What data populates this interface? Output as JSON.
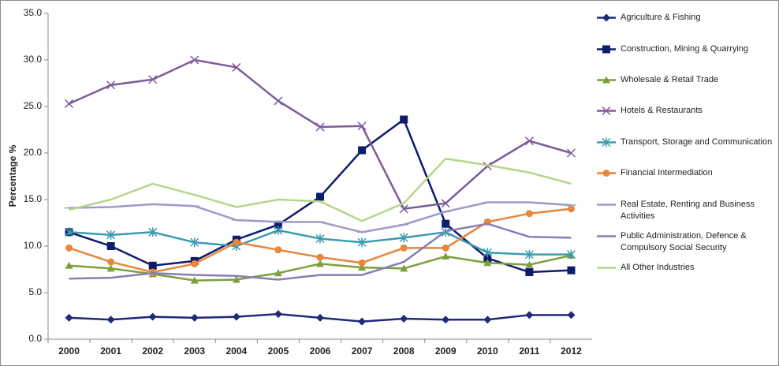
{
  "chart_data": {
    "type": "line",
    "y_label": "Percentage %",
    "categories": [
      "2000",
      "2001",
      "2002",
      "2003",
      "2004",
      "2005",
      "2006",
      "2007",
      "2008",
      "2009",
      "2010",
      "2011",
      "2012"
    ],
    "ylim": [
      0,
      35
    ],
    "yticks": [
      {
        "value": 0,
        "label": "0.0"
      },
      {
        "value": 5,
        "label": "5.0"
      },
      {
        "value": 10,
        "label": "10.0"
      },
      {
        "value": 15,
        "label": "15.0"
      },
      {
        "value": 20,
        "label": "20.0"
      },
      {
        "value": 25,
        "label": "25.0"
      },
      {
        "value": 30,
        "label": "30.0"
      },
      {
        "value": 35,
        "label": "35.0"
      }
    ],
    "legend": "right",
    "series": [
      {
        "name": "Agriculture & Fishing",
        "color": "#1f2a7a",
        "marker": "diamond",
        "values": [
          2.3,
          2.1,
          2.4,
          2.3,
          2.4,
          2.7,
          2.3,
          1.9,
          2.2,
          2.1,
          2.1,
          2.6,
          2.6
        ]
      },
      {
        "name": "Construction, Mining & Quarrying",
        "color": "#0e1c6b",
        "marker": "square",
        "values": [
          11.5,
          10.0,
          7.9,
          8.4,
          10.7,
          12.3,
          15.3,
          20.3,
          23.6,
          12.4,
          8.7,
          7.2,
          7.4
        ]
      },
      {
        "name": "Wholesale & Retail Trade",
        "color": "#7ba03c",
        "marker": "triangle",
        "values": [
          7.9,
          7.6,
          7.0,
          6.3,
          6.4,
          7.1,
          8.1,
          7.7,
          7.6,
          8.9,
          8.2,
          8.0,
          9.0
        ]
      },
      {
        "name": "Hotels & Restaurants",
        "color": "#7b5c9c",
        "marker": "x",
        "values": [
          25.3,
          27.3,
          27.9,
          30.0,
          29.2,
          25.6,
          22.8,
          22.9,
          14.0,
          14.6,
          18.6,
          21.3,
          20.0
        ]
      },
      {
        "name": "Transport, Storage and Communication",
        "color": "#3a9baf",
        "marker": "star",
        "values": [
          11.5,
          11.2,
          11.5,
          10.4,
          10.0,
          11.7,
          10.8,
          10.4,
          10.9,
          11.5,
          9.3,
          9.1,
          9.1
        ]
      },
      {
        "name": "Financial Intermediation",
        "color": "#e8863a",
        "marker": "circle",
        "values": [
          9.8,
          8.3,
          7.2,
          8.1,
          10.4,
          9.6,
          8.8,
          8.2,
          9.8,
          9.8,
          12.6,
          13.5,
          14.0
        ]
      },
      {
        "name": "Real Estate, Renting and Business Activities",
        "color": "#9b9bc8",
        "marker": "plus",
        "values": [
          14.1,
          14.2,
          14.5,
          14.3,
          12.8,
          12.6,
          12.6,
          11.5,
          12.3,
          13.7,
          14.7,
          14.7,
          14.4
        ]
      },
      {
        "name": "Public Administration, Defence & Compulsory Social Security",
        "color": "#8a7db5",
        "marker": "none",
        "values": [
          6.5,
          6.6,
          7.1,
          6.9,
          6.8,
          6.4,
          6.9,
          6.9,
          8.3,
          11.6,
          12.4,
          11.0,
          10.9
        ]
      },
      {
        "name": "All Other Industries",
        "color": "#b5d68a",
        "marker": "none",
        "values": [
          13.9,
          15.0,
          16.7,
          15.5,
          14.2,
          15.0,
          14.8,
          12.7,
          14.6,
          19.4,
          18.7,
          17.9,
          16.7
        ]
      }
    ]
  }
}
